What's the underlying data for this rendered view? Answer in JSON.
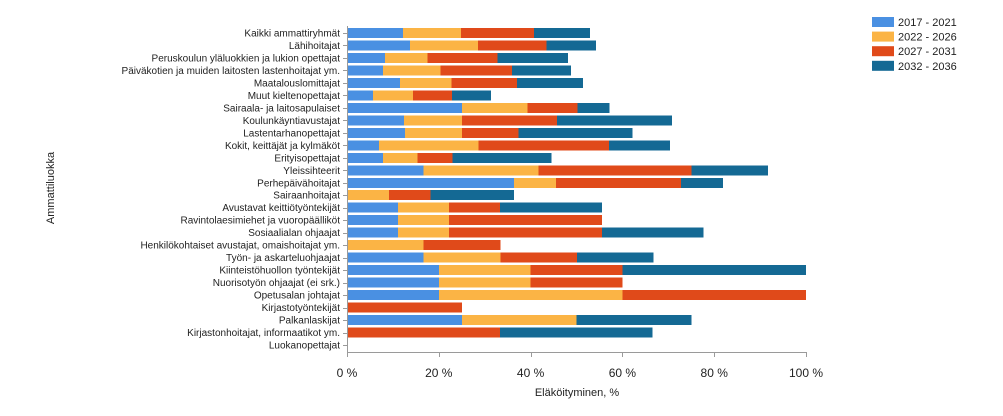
{
  "chart_data": {
    "type": "bar",
    "orientation": "horizontal",
    "stacked": true,
    "xlabel": "Eläköityminen, %",
    "ylabel": "Ammattiluokka",
    "xlim": [
      0,
      100
    ],
    "xticks": [
      0,
      20,
      40,
      60,
      80,
      100
    ],
    "xtick_labels": [
      "0 %",
      "20 %",
      "40 %",
      "60 %",
      "80 %",
      "100 %"
    ],
    "grid": false,
    "legend_position": "top-right",
    "categories": [
      "Kaikki ammattiryhmät",
      "Lähihoitajat",
      "Peruskoulun yläluokkien ja lukion opettajat",
      "Päiväkotien ja muiden laitosten lastenhoitajat ym.",
      "Maatalouslomittajat",
      "Muut kieltenopettajat",
      "Sairaala- ja laitosapulaiset",
      "Koulunkäyntiavustajat",
      "Lastentarhanopettajat",
      "Kokit, keittäjät ja kylmäköt",
      "Erityisopettajat",
      "Yleissihteerit",
      "Perhepäivähoitajat",
      "Sairaanhoitajat",
      "Avustavat keittiötyöntekijät",
      "Ravintolaesimiehet ja vuoropäälliköt",
      "Sosiaalialan ohjaajat",
      "Henkilökohtaiset avustajat, omaishoitajat ym.",
      "Työn- ja askarteluohjaajat",
      "Kiinteistöhuollon työntekijät",
      "Nuorisotyön ohjaajat (ei srk.)",
      "Opetusalan johtajat",
      "Kirjastotyöntekijät",
      "Palkanlaskijat",
      "Kirjastonhoitajat, informaatikot ym.",
      "Luokanopettajat"
    ],
    "series": [
      {
        "name": "2017 - 2021",
        "color": "#4a90e2",
        "values": [
          12.2,
          13.7,
          8.3,
          7.8,
          11.5,
          5.7,
          25.1,
          12.4,
          12.6,
          7.0,
          7.8,
          16.7,
          36.4,
          0,
          11.1,
          11.1,
          11.1,
          0,
          16.7,
          20,
          20,
          20,
          0,
          25,
          0,
          0
        ]
      },
      {
        "name": "2022 - 2026",
        "color": "#fbb445",
        "values": [
          12.6,
          14.8,
          9.2,
          12.6,
          11.3,
          8.7,
          14.2,
          12.6,
          12.4,
          21.6,
          7.6,
          25.0,
          9.1,
          9.1,
          11.1,
          11.1,
          11.1,
          16.7,
          16.7,
          20,
          20,
          40,
          0,
          25,
          0,
          0
        ]
      },
      {
        "name": "2027 - 2031",
        "color": "#e04a1a",
        "values": [
          15.9,
          15.0,
          15.3,
          15.5,
          14.2,
          8.5,
          10.9,
          20.7,
          12.4,
          28.5,
          7.6,
          33.3,
          27.3,
          9.1,
          11.1,
          33.3,
          33.3,
          16.7,
          16.7,
          20,
          20,
          40,
          25,
          0,
          33.3,
          0
        ]
      },
      {
        "name": "2032 - 2036",
        "color": "#146994",
        "values": [
          12.2,
          10.7,
          15.3,
          12.9,
          14.4,
          8.5,
          7.0,
          25.1,
          24.8,
          13.3,
          21.6,
          16.7,
          9.1,
          18.2,
          22.2,
          0,
          22.2,
          0,
          16.7,
          40,
          0,
          0,
          0,
          25,
          33.3,
          0
        ]
      }
    ]
  }
}
